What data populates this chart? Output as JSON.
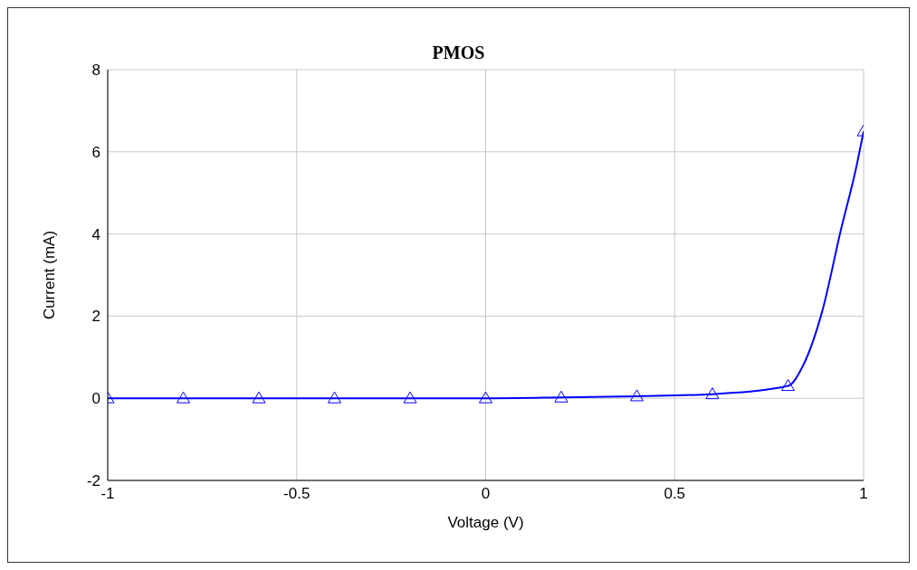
{
  "chart_data": {
    "type": "line",
    "title": "PMOS",
    "xlabel": "Voltage (V)",
    "ylabel": "Current (mA)",
    "series": [
      {
        "color": "#0000ff",
        "marker": "none",
        "x": [
          -1,
          -0.8,
          -0.6,
          -0.4,
          -0.2,
          0,
          0.2,
          0.4,
          0.6,
          0.8,
          0.84,
          0.89,
          0.94,
          0.98,
          1
        ],
        "values": [
          0,
          0,
          0,
          0,
          0,
          0,
          0.02,
          0.05,
          0.1,
          0.3,
          0.8,
          2.1,
          4.1,
          5.6,
          6.5
        ]
      },
      {
        "type": "scatter",
        "color": "#0000ff",
        "marker": "triangle",
        "x": [
          -1,
          -0.8,
          -0.6,
          -0.4,
          -0.2,
          0,
          0.2,
          0.4,
          0.6,
          0.8,
          1
        ],
        "values": [
          0,
          0,
          0,
          0,
          0,
          0,
          0.02,
          0.05,
          0.1,
          0.3,
          6.5
        ]
      }
    ],
    "xlim": [
      -1,
      1
    ],
    "xticks": [
      -1,
      -0.5,
      0,
      0.5,
      1
    ],
    "ylim": [
      -2,
      8
    ],
    "yticks": [
      -2,
      0,
      2,
      4,
      6,
      8
    ],
    "grid": true,
    "legend": false
  }
}
